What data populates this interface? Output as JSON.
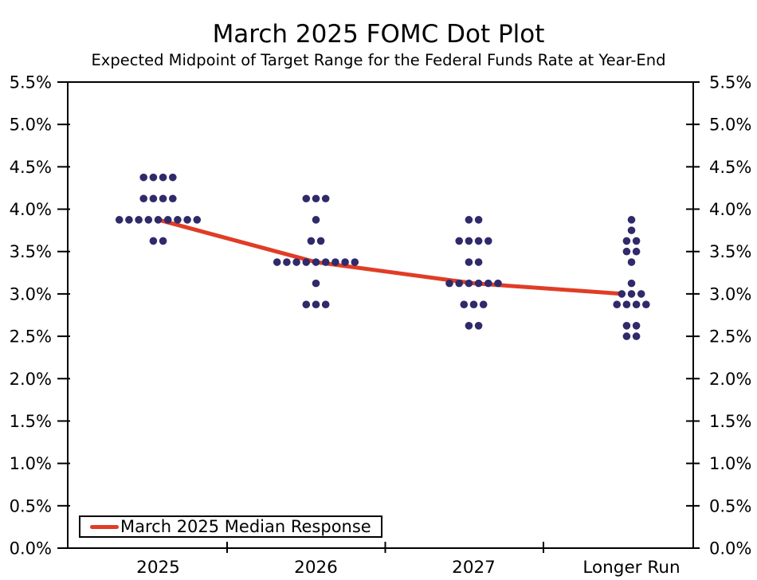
{
  "chart_data": {
    "type": "scatter",
    "title": "March 2025 FOMC Dot Plot",
    "subtitle": "Expected Midpoint of Target Range for the Federal Funds Rate at Year-End",
    "categories": [
      "2025",
      "2026",
      "2027",
      "Longer Run"
    ],
    "ylim": [
      0.0,
      5.5
    ],
    "ytick_step": 0.5,
    "ytick_labels": [
      "0.0%",
      "0.5%",
      "1.0%",
      "1.5%",
      "2.0%",
      "2.5%",
      "3.0%",
      "3.5%",
      "4.0%",
      "4.5%",
      "5.0%",
      "5.5%"
    ],
    "yaxis_labels_both_sides": true,
    "grid": false,
    "dot_color": "#2f2a6a",
    "median_color": "#e03d26",
    "dots": [
      {
        "category": "2025",
        "distribution": [
          {
            "rate": 4.375,
            "count": 4
          },
          {
            "rate": 4.125,
            "count": 4
          },
          {
            "rate": 3.875,
            "count": 9
          },
          {
            "rate": 3.625,
            "count": 2
          }
        ]
      },
      {
        "category": "2026",
        "distribution": [
          {
            "rate": 4.125,
            "count": 3
          },
          {
            "rate": 3.875,
            "count": 1
          },
          {
            "rate": 3.625,
            "count": 2
          },
          {
            "rate": 3.375,
            "count": 9
          },
          {
            "rate": 3.125,
            "count": 1
          },
          {
            "rate": 2.875,
            "count": 3
          }
        ]
      },
      {
        "category": "2027",
        "distribution": [
          {
            "rate": 3.875,
            "count": 2
          },
          {
            "rate": 3.625,
            "count": 4
          },
          {
            "rate": 3.375,
            "count": 2
          },
          {
            "rate": 3.125,
            "count": 6
          },
          {
            "rate": 2.875,
            "count": 3
          },
          {
            "rate": 2.625,
            "count": 2
          }
        ]
      },
      {
        "category": "Longer Run",
        "distribution": [
          {
            "rate": 3.875,
            "count": 1
          },
          {
            "rate": 3.75,
            "count": 1
          },
          {
            "rate": 3.625,
            "count": 2
          },
          {
            "rate": 3.5,
            "count": 2
          },
          {
            "rate": 3.375,
            "count": 1
          },
          {
            "rate": 3.125,
            "count": 1
          },
          {
            "rate": 3.0,
            "count": 3
          },
          {
            "rate": 2.875,
            "count": 4
          },
          {
            "rate": 2.625,
            "count": 2
          },
          {
            "rate": 2.5,
            "count": 2
          }
        ]
      }
    ],
    "series": [
      {
        "name": "March 2025 Median Response",
        "type": "line",
        "categories": [
          "2025",
          "2026",
          "2027",
          "Longer Run"
        ],
        "values": [
          3.875,
          3.375,
          3.125,
          3.0
        ]
      }
    ],
    "legend": {
      "label": "March 2025 Median Response",
      "position": "bottom-left"
    }
  }
}
